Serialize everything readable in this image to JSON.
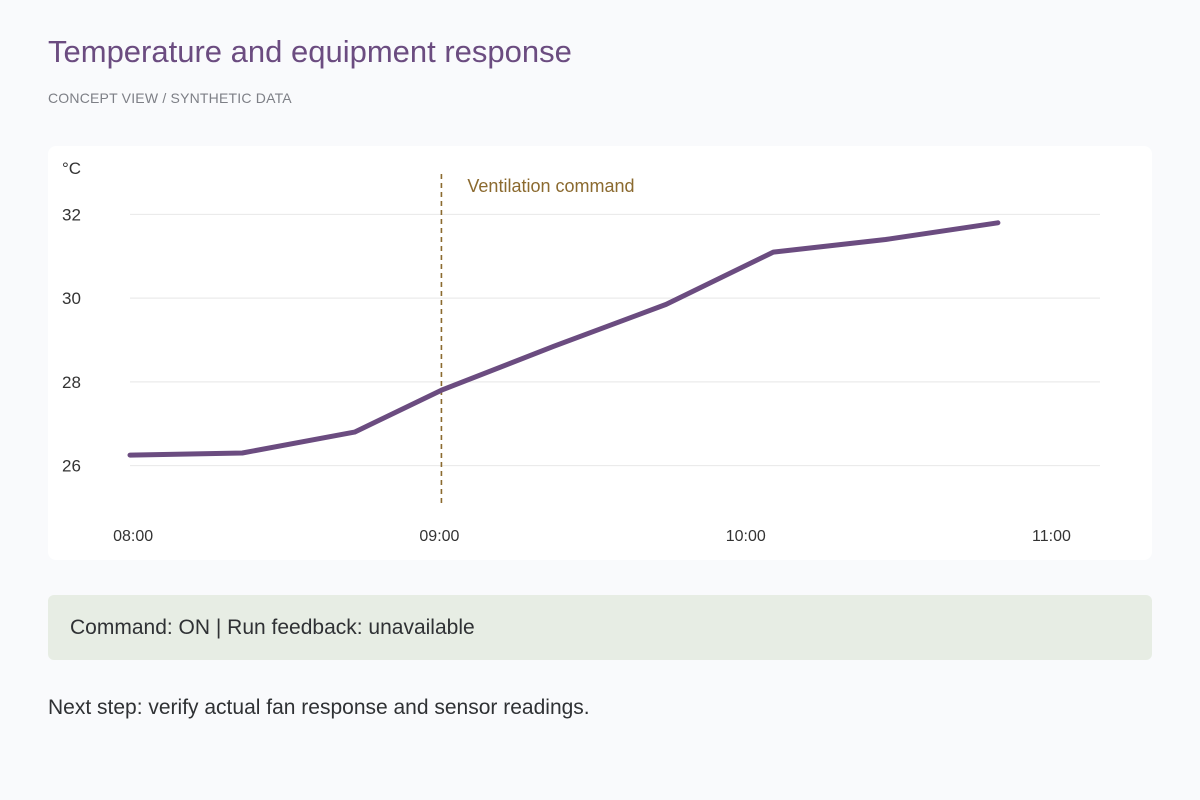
{
  "header": {
    "title": "Temperature and equipment response",
    "subtitle": "CONCEPT VIEW / SYNTHETIC DATA"
  },
  "chart_data": {
    "type": "line",
    "ylabel": "°C",
    "xlabel": "",
    "ylim": [
      24.7,
      33.3
    ],
    "xlim": [
      "07:59",
      "11:09"
    ],
    "yticks": [
      26,
      28,
      30,
      32
    ],
    "xticks": [
      "08:00",
      "09:00",
      "10:00",
      "11:00"
    ],
    "grid": true,
    "series": [
      {
        "color": "#6b4c80",
        "points": [
          {
            "x": "07:59",
            "y": 26.25
          },
          {
            "x": "08:21",
            "y": 26.3
          },
          {
            "x": "08:43",
            "y": 26.8
          },
          {
            "x": "09:00",
            "y": 27.8
          },
          {
            "x": "09:22",
            "y": 28.85
          },
          {
            "x": "09:44",
            "y": 29.85
          },
          {
            "x": "10:05",
            "y": 31.1
          },
          {
            "x": "10:27",
            "y": 31.4
          },
          {
            "x": "10:49",
            "y": 31.8
          }
        ]
      }
    ],
    "annotations": [
      {
        "type": "vline",
        "x": "09:00",
        "label": "Ventilation command",
        "color": "#8b6a2f"
      }
    ]
  },
  "status": {
    "text": "Command: ON | Run feedback: unavailable"
  },
  "footer": {
    "next_step": "Next step: verify actual fan response and sensor readings."
  }
}
